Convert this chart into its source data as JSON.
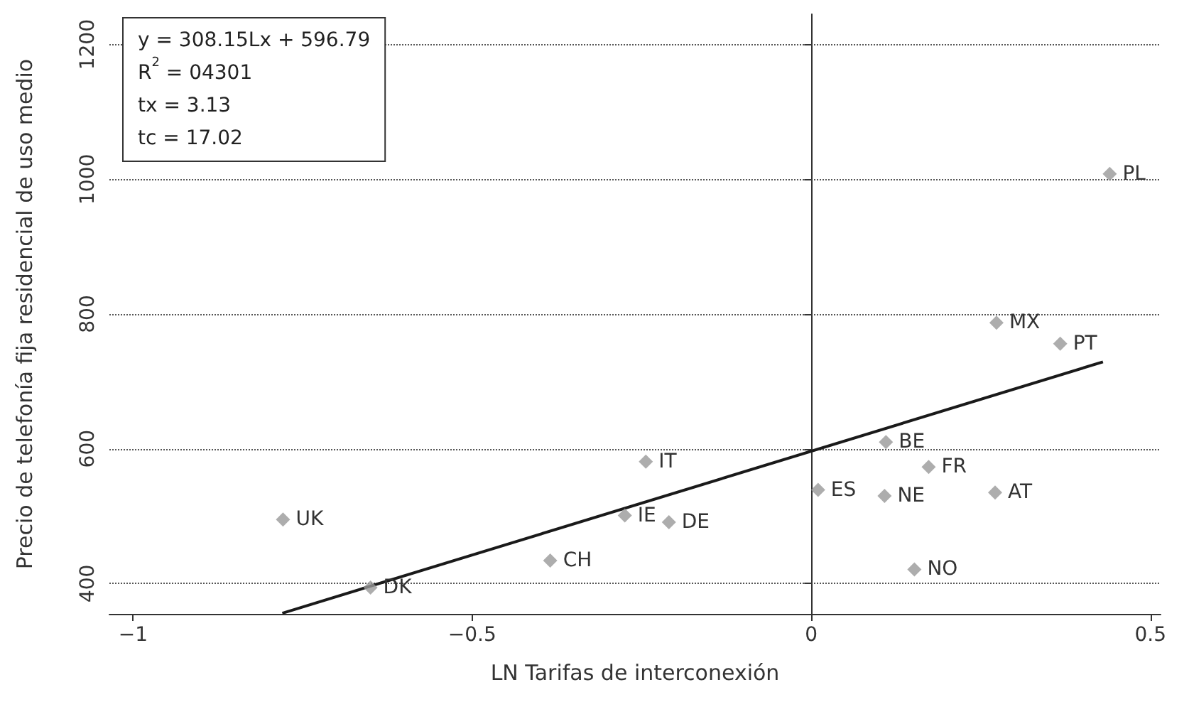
{
  "chart_data": {
    "type": "scatter",
    "xlabel": "LN Tarifas de interconexión",
    "ylabel": "Precio de telefonía fija residencial de uso medio",
    "x": [
      0.44,
      0.273,
      0.367,
      0.11,
      0.173,
      0.271,
      0.01,
      0.108,
      0.152,
      -0.244,
      -0.275,
      -0.21,
      -0.385,
      -0.65,
      -0.779
    ],
    "series": [
      {
        "color": "#999999",
        "marker": "diamond",
        "values": [
          1008,
          787,
          756,
          610,
          573,
          535,
          539,
          530,
          421,
          581,
          501,
          491,
          434,
          394,
          495
        ]
      },
      {
        "type": "line",
        "color": "#1a1a1a",
        "marker": "none",
        "x": [
          -0.78,
          0.43
        ],
        "values": [
          356,
          729
        ]
      }
    ],
    "xlim": [
      -1.035,
      0.515
    ],
    "xticks": [
      {
        "value": -1,
        "label": "−1"
      },
      {
        "value": -0.5,
        "label": "−0.5"
      },
      0,
      0.5
    ],
    "ylim": [
      355,
      1245
    ],
    "yticks": [
      400,
      600,
      800,
      1000,
      1200
    ],
    "grid": "y",
    "annotations": [
      "y = 308.15Lx + 596.79",
      "R$^{2}$ = 04301",
      "tx = 3.13",
      "tc = 17.02",
      {
        "text": "PL",
        "x": 0.44,
        "y": 1008
      },
      {
        "text": "MX",
        "x": 0.273,
        "y": 787
      },
      {
        "text": "PT",
        "x": 0.367,
        "y": 756
      },
      {
        "text": "BE",
        "x": 0.11,
        "y": 610
      },
      {
        "text": "FR",
        "x": 0.173,
        "y": 573
      },
      {
        "text": "AT",
        "x": 0.271,
        "y": 535
      },
      {
        "text": "ES",
        "x": 0.01,
        "y": 539
      },
      {
        "text": "NE",
        "x": 0.108,
        "y": 530
      },
      {
        "text": "NO",
        "x": 0.152,
        "y": 421
      },
      {
        "text": "IT",
        "x": -0.244,
        "y": 581
      },
      {
        "text": "IE",
        "x": -0.275,
        "y": 501
      },
      {
        "text": "DE",
        "x": -0.21,
        "y": 491
      },
      {
        "text": "CH",
        "x": -0.385,
        "y": 434
      },
      {
        "text": "DK",
        "x": -0.65,
        "y": 394
      },
      {
        "text": "UK",
        "x": -0.779,
        "y": 495
      }
    ]
  }
}
